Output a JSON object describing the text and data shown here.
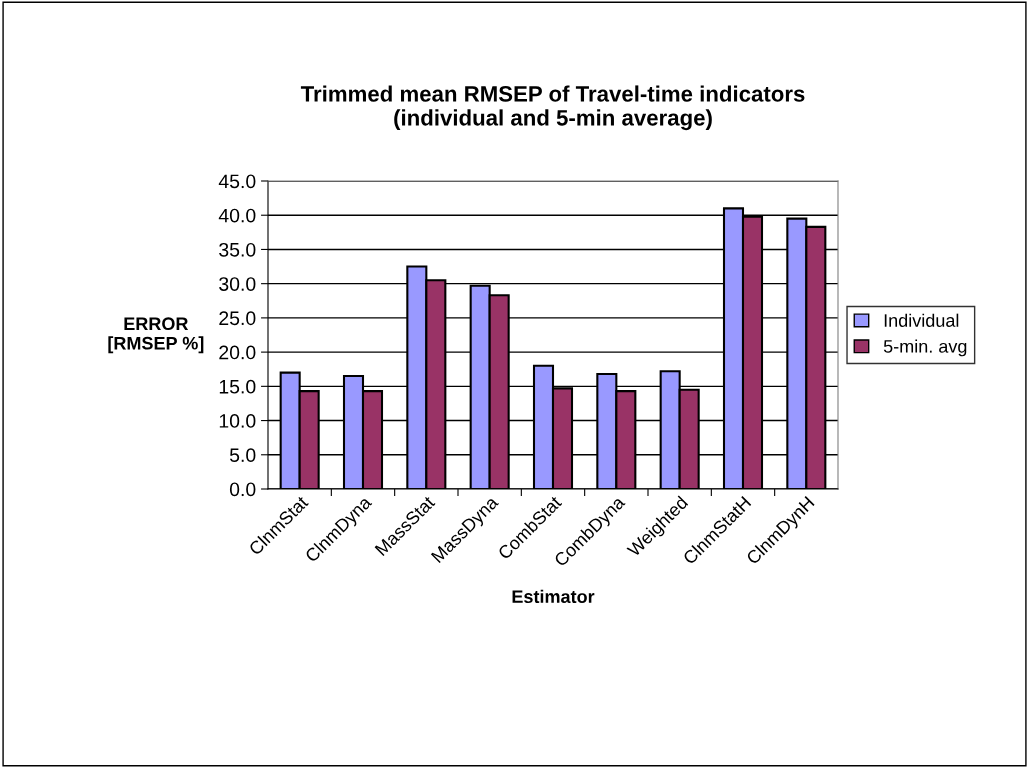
{
  "chart_data": {
    "type": "bar",
    "title": "Trimmed mean RMSEP of Travel-time indicators\n(individual and 5-min average)",
    "xlabel": "Estimator",
    "ylabel": "ERROR\n[RMSEP %]",
    "categories": [
      "ClnmStat",
      "ClnmDyna",
      "MassStat",
      "MassDyna",
      "CombStat",
      "CombDyna",
      "Weighted",
      "ClnmStatH",
      "ClnmDynH"
    ],
    "series": [
      {
        "name": "Individual",
        "color": "#9999ff",
        "values": [
          17.0,
          16.5,
          32.5,
          29.7,
          18.0,
          16.8,
          17.2,
          41.0,
          39.5
        ]
      },
      {
        "name": "5-min. avg",
        "color": "#993366",
        "values": [
          14.3,
          14.3,
          30.5,
          28.3,
          14.7,
          14.3,
          14.5,
          39.8,
          38.3
        ]
      }
    ],
    "ylim": [
      0,
      45
    ],
    "yticks": [
      {
        "value": 0,
        "label": "0.0"
      },
      {
        "value": 5,
        "label": "5.0"
      },
      {
        "value": 10,
        "label": "10.0"
      },
      {
        "value": 15,
        "label": "15.0"
      },
      {
        "value": 20,
        "label": "20.0"
      },
      {
        "value": 25,
        "label": "25.0"
      },
      {
        "value": 30,
        "label": "30.0"
      },
      {
        "value": 35,
        "label": "35.0"
      },
      {
        "value": 40,
        "label": "40.0"
      },
      {
        "value": 45,
        "label": "45.0"
      }
    ],
    "grid": "y",
    "legend": "right"
  }
}
